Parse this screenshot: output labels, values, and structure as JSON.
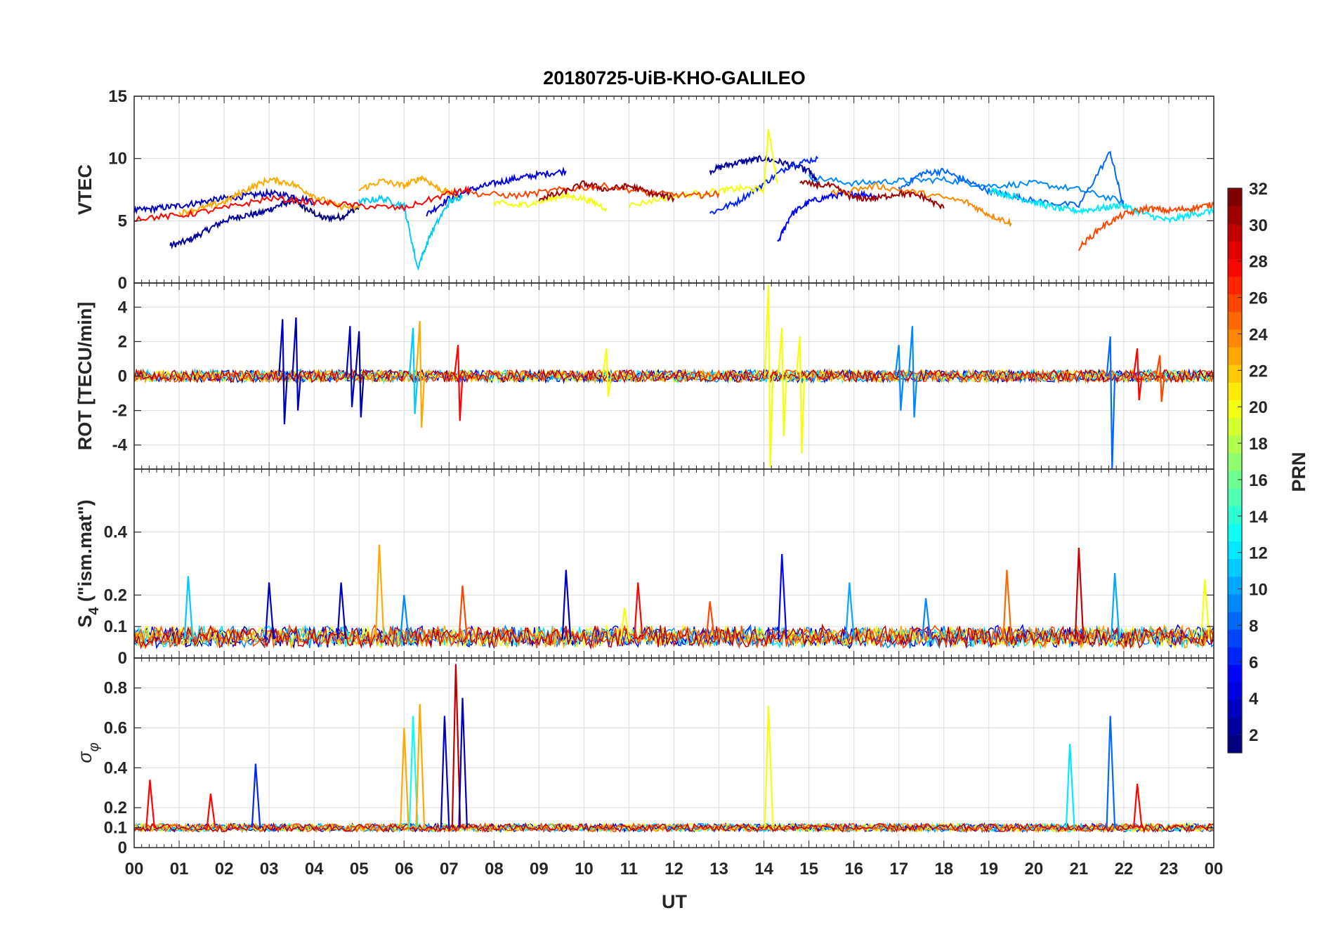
{
  "title": "20180725-UiB-KHO-GALILEO",
  "colorbar": {
    "label": "PRN",
    "ticks": [
      2,
      4,
      6,
      8,
      10,
      12,
      14,
      16,
      18,
      20,
      22,
      24,
      26,
      28,
      30,
      32
    ],
    "range": [
      1,
      32
    ],
    "colormap": "jet"
  },
  "chart_data": [
    {
      "type": "line",
      "panel": "vtec",
      "ylabel": "VTEC",
      "ylim": [
        0,
        15
      ],
      "yticks": [
        0,
        5,
        10,
        15
      ],
      "xlim": [
        0,
        24
      ],
      "grid": true,
      "series": [
        {
          "prn": 1,
          "x": [
            3.5,
            3.8,
            4.2,
            4.6,
            5.0
          ],
          "values": [
            6.8,
            6.0,
            5.2,
            5.3,
            6.1
          ]
        },
        {
          "prn": 2,
          "x": [
            0.8,
            1.2,
            1.6,
            2.0,
            2.4,
            2.8,
            3.2,
            3.5
          ],
          "values": [
            3.0,
            3.4,
            4.2,
            5.0,
            5.4,
            5.6,
            6.2,
            6.6
          ]
        },
        {
          "prn": 3,
          "x": [
            0,
            0.5,
            1.0,
            1.5,
            2.0,
            2.5,
            3.0,
            3.5,
            4.0
          ],
          "values": [
            5.8,
            6.0,
            6.2,
            6.5,
            6.8,
            7.0,
            7.2,
            7.0,
            6.5
          ]
        },
        {
          "prn": 4,
          "x": [
            6.5,
            7.0,
            7.5,
            8.0,
            8.5,
            9.0,
            9.6
          ],
          "values": [
            5.5,
            6.8,
            7.5,
            8.0,
            8.4,
            8.7,
            9.0
          ]
        },
        {
          "prn": 2,
          "x": [
            12.8,
            13.2,
            13.6,
            14.0,
            14.5,
            15.0,
            15.2
          ],
          "values": [
            9.0,
            9.5,
            9.8,
            10.0,
            9.6,
            9.0,
            8.0
          ]
        },
        {
          "prn": 5,
          "x": [
            14.3,
            14.6,
            15.0,
            15.5,
            16.0,
            16.5
          ],
          "values": [
            3.2,
            5.5,
            6.5,
            7.0,
            7.2,
            7.0
          ]
        },
        {
          "prn": 6,
          "x": [
            12.8,
            13.4,
            14.0,
            14.6,
            15.2
          ],
          "values": [
            5.6,
            6.5,
            8.0,
            9.5,
            10.0
          ]
        },
        {
          "prn": 9,
          "x": [
            15.0,
            16.0,
            17.0,
            18.0,
            19.0,
            20.0,
            21.0,
            22.0
          ],
          "values": [
            8.5,
            8.0,
            8.2,
            8.3,
            7.8,
            8.0,
            7.5,
            6.5
          ]
        },
        {
          "prn": 8,
          "x": [
            17.0,
            17.5,
            18.0,
            18.5,
            19.0,
            19.5,
            20.0,
            21.0,
            21.7,
            22.0
          ],
          "values": [
            7.5,
            8.8,
            9.0,
            8.2,
            7.4,
            7.0,
            6.6,
            6.2,
            10.5,
            6.0
          ]
        },
        {
          "prn": 11,
          "x": [
            5.0,
            5.5,
            6.0,
            6.3,
            6.6,
            7.0,
            7.3
          ],
          "values": [
            6.5,
            6.8,
            6.2,
            1.2,
            4.0,
            6.5,
            7.0
          ]
        },
        {
          "prn": 12,
          "x": [
            19.0,
            19.5,
            20.0,
            20.5,
            21.0,
            21.5,
            22.0
          ],
          "values": [
            7.5,
            7.0,
            6.5,
            6.0,
            5.8,
            6.0,
            6.3
          ]
        },
        {
          "prn": 12,
          "x": [
            22.0,
            22.5,
            23.0,
            23.5,
            24.0
          ],
          "values": [
            6.2,
            5.5,
            5.0,
            5.5,
            5.8
          ]
        },
        {
          "prn": 20,
          "x": [
            8.0,
            8.5,
            9.0,
            9.5,
            10.0,
            10.5
          ],
          "values": [
            6.5,
            6.2,
            6.5,
            7.0,
            6.8,
            6.0
          ]
        },
        {
          "prn": 20,
          "x": [
            11.0,
            12.0,
            13.0,
            13.5,
            14.0,
            14.1,
            14.3
          ],
          "values": [
            6.2,
            7.0,
            7.4,
            7.6,
            7.5,
            12.3,
            8.0
          ]
        },
        {
          "prn": 23,
          "x": [
            1.0,
            1.5,
            2.0,
            2.5,
            3.0,
            3.5,
            4.0,
            4.5,
            5.0
          ],
          "values": [
            5.6,
            6.0,
            6.5,
            7.5,
            8.3,
            8.0,
            7.0,
            6.2,
            6.0
          ]
        },
        {
          "prn": 23,
          "x": [
            5.0,
            5.5,
            6.0,
            6.4,
            6.8,
            7.2
          ],
          "values": [
            7.5,
            8.2,
            7.8,
            8.5,
            7.5,
            7.0
          ]
        },
        {
          "prn": 24,
          "x": [
            15.5,
            16.5,
            17.5,
            18.5,
            19.0,
            19.5
          ],
          "values": [
            7.2,
            7.8,
            7.2,
            6.5,
            5.5,
            4.8
          ]
        },
        {
          "prn": 26,
          "x": [
            7.5,
            8.5,
            9.5,
            10.5,
            11.5,
            12.5,
            13.0
          ],
          "values": [
            7.2,
            7.0,
            7.5,
            7.8,
            7.2,
            7.0,
            7.2
          ]
        },
        {
          "prn": 26,
          "x": [
            21.0,
            21.5,
            22.0,
            22.5,
            23.0,
            23.5,
            24.0
          ],
          "values": [
            2.8,
            4.5,
            5.5,
            6.0,
            5.8,
            6.0,
            6.3
          ]
        },
        {
          "prn": 28,
          "x": [
            0,
            1.0,
            2.0,
            3.0,
            4.0,
            5.0,
            6.0,
            7.0,
            7.5
          ],
          "values": [
            5.2,
            5.4,
            6.0,
            6.8,
            6.5,
            6.2,
            6.0,
            7.2,
            7.5
          ]
        },
        {
          "prn": 31,
          "x": [
            14.8,
            15.5,
            16.0,
            16.5,
            17.0,
            17.5,
            18.0
          ],
          "values": [
            8.0,
            7.8,
            6.8,
            6.8,
            7.2,
            7.0,
            6.0
          ]
        },
        {
          "prn": 31,
          "x": [
            9.0,
            9.5,
            10.0,
            10.5,
            11.0,
            11.5,
            12.0
          ],
          "values": [
            6.8,
            7.2,
            8.0,
            7.5,
            7.8,
            7.2,
            6.8
          ]
        }
      ]
    },
    {
      "type": "line",
      "panel": "rot",
      "ylabel": "ROT [TECU/min]",
      "ylim": [
        -5.4,
        5.4
      ],
      "yticks": [
        -4,
        -2,
        0,
        2,
        4
      ],
      "xlim": [
        0,
        24
      ],
      "grid": true,
      "spikes": [
        {
          "prn": 3,
          "x": 3.3,
          "values": [
            3.3,
            -2.8
          ]
        },
        {
          "prn": 3,
          "x": 3.6,
          "values": [
            3.4,
            -2.0
          ]
        },
        {
          "prn": 3,
          "x": 4.8,
          "values": [
            2.9,
            -1.8
          ]
        },
        {
          "prn": 2,
          "x": 5.0,
          "values": [
            2.6,
            -2.4
          ]
        },
        {
          "prn": 23,
          "x": 6.35,
          "values": [
            3.2,
            -3.0
          ]
        },
        {
          "prn": 11,
          "x": 6.2,
          "values": [
            2.8,
            -2.2
          ]
        },
        {
          "prn": 28,
          "x": 7.2,
          "values": [
            1.8,
            -2.6
          ]
        },
        {
          "prn": 20,
          "x": 10.5,
          "values": [
            1.6,
            -1.2
          ]
        },
        {
          "prn": 20,
          "x": 14.1,
          "values": [
            5.3,
            -5.3
          ]
        },
        {
          "prn": 20,
          "x": 14.4,
          "values": [
            2.8,
            -3.5
          ]
        },
        {
          "prn": 20,
          "x": 14.8,
          "values": [
            2.3,
            -4.5
          ]
        },
        {
          "prn": 9,
          "x": 17.3,
          "values": [
            2.9,
            -2.4
          ]
        },
        {
          "prn": 9,
          "x": 17.0,
          "values": [
            1.8,
            -2.0
          ]
        },
        {
          "prn": 8,
          "x": 21.7,
          "values": [
            2.3,
            -5.4
          ]
        },
        {
          "prn": 28,
          "x": 22.3,
          "values": [
            1.6,
            -1.4
          ]
        },
        {
          "prn": 26,
          "x": 22.8,
          "values": [
            1.2,
            -1.5
          ]
        }
      ]
    },
    {
      "type": "line",
      "panel": "s4",
      "ylabel": "S4 (\"ism.mat\")",
      "ylim": [
        0,
        0.6
      ],
      "yticks": [
        0,
        0.1,
        0.2,
        0.4
      ],
      "xlim": [
        0,
        24
      ],
      "grid": true,
      "spikes": [
        {
          "prn": 11,
          "x": 1.2,
          "values": [
            0.26
          ]
        },
        {
          "prn": 3,
          "x": 3.0,
          "values": [
            0.24
          ]
        },
        {
          "prn": 3,
          "x": 4.6,
          "values": [
            0.24
          ]
        },
        {
          "prn": 23,
          "x": 5.45,
          "values": [
            0.36
          ]
        },
        {
          "prn": 9,
          "x": 6.0,
          "values": [
            0.2
          ]
        },
        {
          "prn": 26,
          "x": 7.3,
          "values": [
            0.23
          ]
        },
        {
          "prn": 3,
          "x": 9.6,
          "values": [
            0.28
          ]
        },
        {
          "prn": 20,
          "x": 10.9,
          "values": [
            0.16
          ]
        },
        {
          "prn": 28,
          "x": 11.2,
          "values": [
            0.24
          ]
        },
        {
          "prn": 26,
          "x": 12.8,
          "values": [
            0.18
          ]
        },
        {
          "prn": 5,
          "x": 14.4,
          "values": [
            0.33
          ]
        },
        {
          "prn": 10,
          "x": 15.9,
          "values": [
            0.24
          ]
        },
        {
          "prn": 9,
          "x": 17.6,
          "values": [
            0.19
          ]
        },
        {
          "prn": 25,
          "x": 19.4,
          "values": [
            0.28
          ]
        },
        {
          "prn": 30,
          "x": 21.0,
          "values": [
            0.35
          ]
        },
        {
          "prn": 10,
          "x": 21.8,
          "values": [
            0.27
          ]
        },
        {
          "prn": 20,
          "x": 23.8,
          "values": [
            0.25
          ]
        }
      ]
    },
    {
      "type": "line",
      "panel": "sigma_phi",
      "ylabel": "σφ",
      "ylim": [
        0,
        0.95
      ],
      "yticks": [
        0,
        0.1,
        0.2,
        0.4,
        0.6,
        0.8
      ],
      "xlim": [
        0,
        24
      ],
      "grid": true,
      "spikes": [
        {
          "prn": 28,
          "x": 0.35,
          "values": [
            0.34
          ]
        },
        {
          "prn": 28,
          "x": 1.7,
          "values": [
            0.27
          ]
        },
        {
          "prn": 6,
          "x": 2.7,
          "values": [
            0.42
          ]
        },
        {
          "prn": 23,
          "x": 6.0,
          "values": [
            0.6
          ]
        },
        {
          "prn": 13,
          "x": 6.2,
          "values": [
            0.66
          ]
        },
        {
          "prn": 23,
          "x": 6.35,
          "values": [
            0.72
          ]
        },
        {
          "prn": 3,
          "x": 6.9,
          "values": [
            0.66
          ]
        },
        {
          "prn": 30,
          "x": 7.15,
          "values": [
            0.92
          ]
        },
        {
          "prn": 3,
          "x": 7.3,
          "values": [
            0.75
          ]
        },
        {
          "prn": 20,
          "x": 14.1,
          "values": [
            0.71
          ]
        },
        {
          "prn": 12,
          "x": 20.8,
          "values": [
            0.52
          ]
        },
        {
          "prn": 8,
          "x": 21.7,
          "values": [
            0.66
          ]
        },
        {
          "prn": 28,
          "x": 22.3,
          "values": [
            0.32
          ]
        }
      ]
    }
  ],
  "x_axis": {
    "label": "UT",
    "ticks": [
      "00",
      "01",
      "02",
      "03",
      "04",
      "05",
      "06",
      "07",
      "08",
      "09",
      "10",
      "11",
      "12",
      "13",
      "14",
      "15",
      "16",
      "17",
      "18",
      "19",
      "20",
      "21",
      "22",
      "23",
      "00"
    ]
  }
}
